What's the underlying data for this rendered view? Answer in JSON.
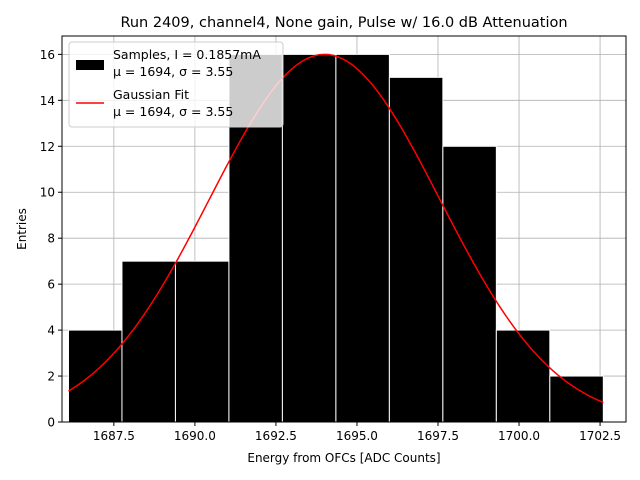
{
  "chart_data": {
    "type": "bar",
    "title": "Run 2409, channel4, None gain, Pulse w/ 16.0 dB Attenuation",
    "xlabel": "Energy from OFCs [ADC Counts]",
    "ylabel": "Entries",
    "xlim": [
      1685.9,
      1703.3
    ],
    "ylim": [
      0,
      16.8
    ],
    "xticks": [
      1687.5,
      1690.0,
      1692.5,
      1695.0,
      1697.5,
      1700.0,
      1702.5
    ],
    "xtick_labels": [
      "1687.5",
      "1690.0",
      "1692.5",
      "1695.0",
      "1697.5",
      "1700.0",
      "1702.5"
    ],
    "yticks": [
      0,
      2,
      4,
      6,
      8,
      10,
      12,
      14,
      16
    ],
    "ytick_labels": [
      "0",
      "2",
      "4",
      "6",
      "8",
      "10",
      "12",
      "14",
      "16"
    ],
    "grid": true,
    "legend_position": "top-left",
    "histogram": {
      "bin_edges": [
        1686.1,
        1687.75,
        1689.4,
        1691.05,
        1692.7,
        1694.35,
        1696.0,
        1697.65,
        1699.3,
        1700.95,
        1702.6
      ],
      "counts": [
        4,
        7,
        7,
        16,
        16,
        16,
        15,
        12,
        4,
        2
      ],
      "color": "#000000",
      "label_line1": "Samples, I = 0.1857mA",
      "label_line2": "μ = 1694, σ = 3.55"
    },
    "fit": {
      "type": "gaussian",
      "mu": 1694.0,
      "sigma": 3.55,
      "amplitude": 16.0,
      "x_range": [
        1686.1,
        1702.6
      ],
      "color": "#ff0000",
      "label_line1": "Gaussian Fit",
      "label_line2": "μ = 1694, σ = 3.55"
    }
  }
}
